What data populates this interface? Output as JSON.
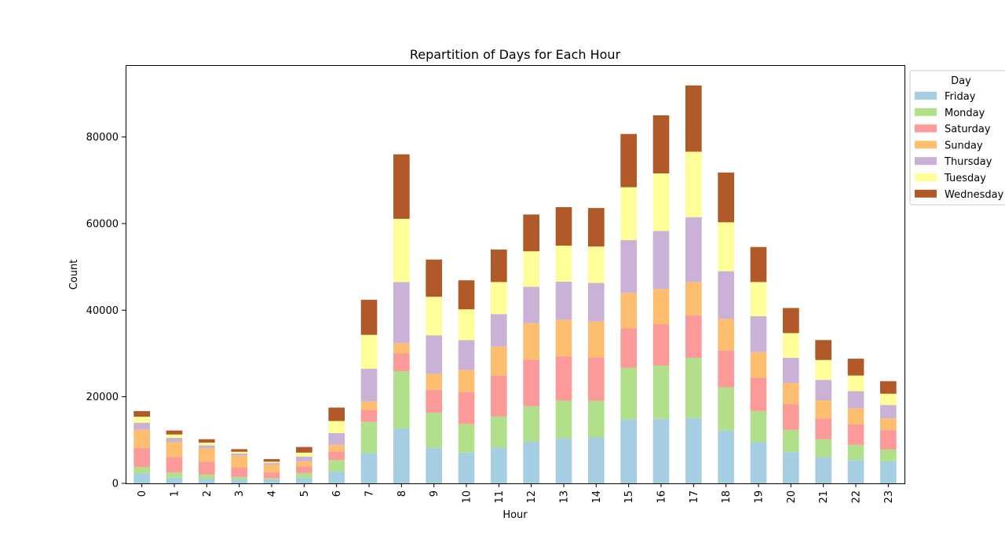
{
  "chart_data": {
    "type": "bar",
    "stacked": true,
    "title": "Repartition of Days for Each Hour",
    "xlabel": "Hour",
    "ylabel": "Count",
    "ylim": [
      0,
      96600
    ],
    "yticks": [
      0,
      20000,
      40000,
      60000,
      80000
    ],
    "grid": false,
    "legend": {
      "title": "Day",
      "placement": "upper-right-outside"
    },
    "categories": [
      "0",
      "1",
      "2",
      "3",
      "4",
      "5",
      "6",
      "7",
      "8",
      "9",
      "10",
      "11",
      "12",
      "13",
      "14",
      "15",
      "16",
      "17",
      "18",
      "19",
      "20",
      "21",
      "22",
      "23"
    ],
    "series": [
      {
        "name": "Friday",
        "color": "#a6cee3",
        "values": [
          2300,
          1300,
          1000,
          900,
          900,
          1300,
          2700,
          7000,
          12700,
          8300,
          7100,
          8300,
          9700,
          10400,
          10600,
          14800,
          14900,
          15100,
          12200,
          9500,
          7200,
          6100,
          5400,
          5100
        ]
      },
      {
        "name": "Monday",
        "color": "#b2df8a",
        "values": [
          1500,
          1200,
          1000,
          600,
          300,
          1100,
          2700,
          7200,
          13200,
          8000,
          6600,
          7200,
          8100,
          8700,
          8500,
          11900,
          12300,
          13900,
          10000,
          7200,
          5200,
          4100,
          3500,
          2700
        ]
      },
      {
        "name": "Saturday",
        "color": "#fb9a99",
        "values": [
          4400,
          3600,
          3000,
          2200,
          1400,
          1500,
          2000,
          2800,
          4100,
          5300,
          7400,
          9400,
          10800,
          10300,
          10000,
          9100,
          9500,
          9800,
          8500,
          7700,
          5900,
          4800,
          4700,
          4500
        ]
      },
      {
        "name": "Sunday",
        "color": "#fdbf6f",
        "values": [
          4200,
          3400,
          3100,
          2700,
          1700,
          1200,
          1500,
          1900,
          2400,
          3700,
          5100,
          6700,
          8400,
          8400,
          8300,
          8200,
          8200,
          7700,
          7300,
          5900,
          4900,
          4200,
          3700,
          2700
        ]
      },
      {
        "name": "Thursday",
        "color": "#cab2d6",
        "values": [
          1600,
          1000,
          700,
          500,
          400,
          1100,
          2700,
          7600,
          14100,
          8900,
          6900,
          7500,
          8400,
          8800,
          8900,
          12200,
          13400,
          15000,
          11000,
          8300,
          5800,
          4700,
          4000,
          3100
        ]
      },
      {
        "name": "Tuesday",
        "color": "#ffff99",
        "values": [
          1400,
          800,
          600,
          400,
          300,
          900,
          2800,
          7800,
          14600,
          8900,
          7100,
          7400,
          8200,
          8300,
          8400,
          12200,
          13300,
          15100,
          11300,
          7900,
          5700,
          4600,
          3600,
          2600
        ]
      },
      {
        "name": "Wednesday",
        "color": "#b15928",
        "values": [
          1300,
          900,
          800,
          600,
          600,
          1300,
          3100,
          8100,
          14900,
          8600,
          6700,
          7500,
          8500,
          8900,
          8900,
          12300,
          13400,
          15300,
          11500,
          8100,
          5800,
          4600,
          3900,
          2900
        ]
      }
    ]
  }
}
